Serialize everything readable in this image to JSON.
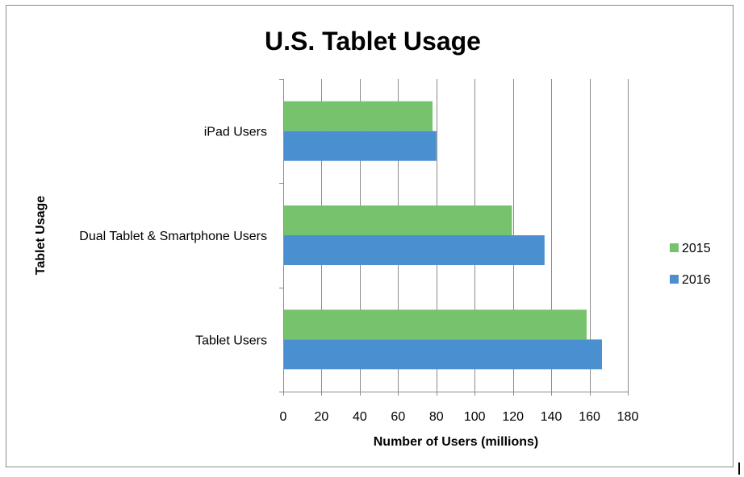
{
  "chart_data": {
    "type": "bar",
    "orientation": "horizontal",
    "title": "U.S. Tablet Usage",
    "xlabel": "Number of Users (millions)",
    "ylabel": "Tablet Usage",
    "categories": [
      "Tablet Users",
      "Dual Tablet & Smartphone Users",
      "iPad Users"
    ],
    "series": [
      {
        "name": "2015",
        "color": "#77c36d",
        "values": [
          158.5,
          119.5,
          78
        ]
      },
      {
        "name": "2016",
        "color": "#4a8fd0",
        "values": [
          166.5,
          136.5,
          80
        ]
      }
    ],
    "xlim": [
      0,
      180
    ],
    "xticks": [
      0,
      20,
      40,
      60,
      80,
      100,
      120,
      140,
      160,
      180
    ],
    "grid": true,
    "legend_position": "right",
    "legend_order": [
      "2015",
      "2016"
    ]
  }
}
